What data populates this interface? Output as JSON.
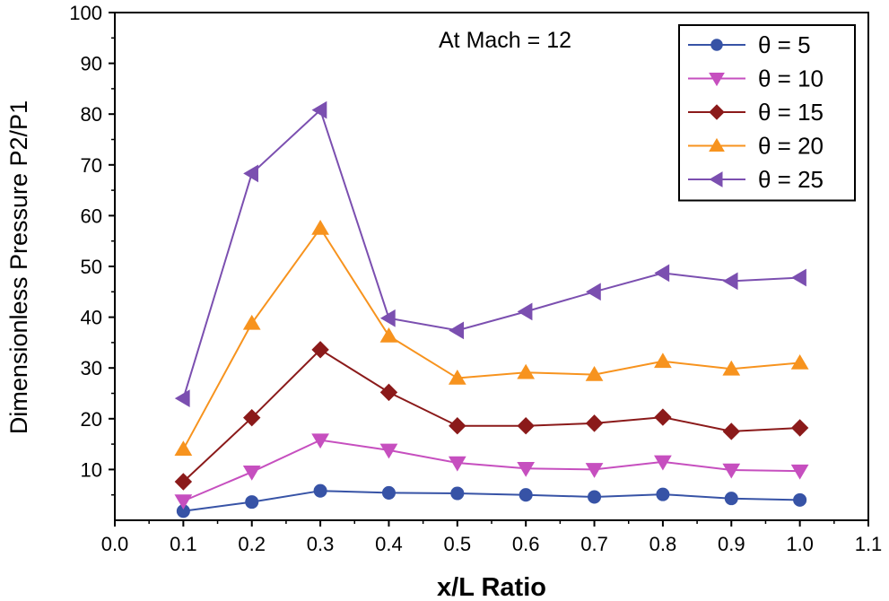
{
  "chart_data": {
    "type": "line",
    "annotation": "At Mach = 12",
    "xlabel": "x/L Ratio",
    "ylabel": "Dimensionless Pressure P2/P1",
    "xlim": [
      0.0,
      1.1
    ],
    "ylim": [
      0,
      100
    ],
    "xticks": [
      "0.0",
      "0.1",
      "0.2",
      "0.3",
      "0.4",
      "0.5",
      "0.6",
      "0.7",
      "0.8",
      "0.9",
      "1.0",
      "1.1"
    ],
    "yticks": [
      "10",
      "20",
      "30",
      "40",
      "50",
      "60",
      "70",
      "80",
      "90",
      "100"
    ],
    "legend_position": "top-right",
    "x": [
      0.1,
      0.2,
      0.3,
      0.4,
      0.5,
      0.6,
      0.7,
      0.8,
      0.9,
      1.0
    ],
    "series": [
      {
        "name": "θ = 5",
        "marker": "circle",
        "color": "#3753a6",
        "values": [
          1.8,
          3.6,
          5.8,
          5.4,
          5.3,
          5.0,
          4.6,
          5.1,
          4.3,
          4.0
        ]
      },
      {
        "name": "θ = 10",
        "marker": "triangle-down",
        "color": "#c64fbf",
        "values": [
          3.8,
          9.5,
          15.8,
          13.8,
          11.3,
          10.2,
          10.0,
          11.5,
          9.9,
          9.7
        ]
      },
      {
        "name": "θ = 15",
        "marker": "diamond",
        "color": "#8b1a1a",
        "values": [
          7.6,
          20.2,
          33.6,
          25.2,
          18.6,
          18.6,
          19.1,
          20.3,
          17.5,
          18.2
        ]
      },
      {
        "name": "θ = 20",
        "marker": "triangle-up",
        "color": "#f7931e",
        "values": [
          14.0,
          38.8,
          57.5,
          36.3,
          28.0,
          29.1,
          28.7,
          31.3,
          29.8,
          31.0
        ]
      },
      {
        "name": "θ = 25",
        "marker": "triangle-left",
        "color": "#7b4fb0",
        "values": [
          24.0,
          68.3,
          80.8,
          39.8,
          37.4,
          41.1,
          45.0,
          48.7,
          47.1,
          47.8
        ]
      }
    ]
  }
}
